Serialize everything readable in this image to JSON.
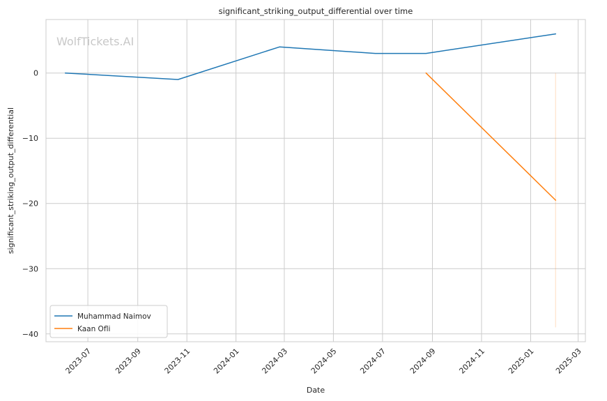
{
  "watermark": "WolfTickets.AI",
  "chart_data": {
    "type": "line",
    "title": "significant_striking_output_differential over time",
    "xlabel": "Date",
    "ylabel": "significant_striking_output_differential",
    "x_ticks": [
      "2023-07",
      "2023-09",
      "2023-11",
      "2024-01",
      "2024-03",
      "2024-05",
      "2024-07",
      "2024-09",
      "2024-11",
      "2025-01",
      "2025-03"
    ],
    "y_ticks": [
      0,
      -10,
      -20,
      -30,
      -40
    ],
    "y_tick_labels": [
      "0",
      "−10",
      "−20",
      "−30",
      "−40"
    ],
    "xlim": [
      "2023-05-10",
      "2025-03-10"
    ],
    "ylim": [
      -41.2,
      8.2
    ],
    "grid": true,
    "legend_position": "lower-left",
    "series": [
      {
        "name": "Muhammad Naimov",
        "color": "#1f77b4",
        "x": [
          "2023-06-03",
          "2023-10-21",
          "2024-02-24",
          "2024-06-22",
          "2024-08-24",
          "2025-02-01"
        ],
        "y": [
          0,
          -1,
          4,
          3,
          3,
          6
        ]
      },
      {
        "name": "Kaan Ofli",
        "color": "#ff7f0e",
        "x": [
          "2024-08-24",
          "2025-02-01"
        ],
        "y": [
          0,
          -19.5
        ]
      }
    ],
    "band": {
      "color": "#ff7f0e",
      "x": "2025-02-01",
      "y_range": [
        -39,
        0
      ]
    }
  }
}
